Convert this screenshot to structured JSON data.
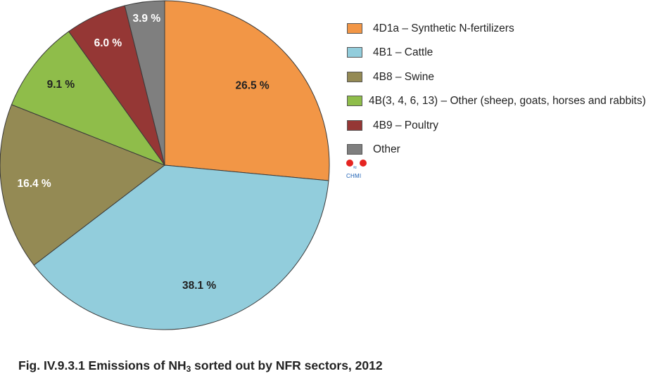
{
  "chart_data": {
    "type": "pie",
    "slices": [
      {
        "label": "4D1a – Synthetic N-fertilizers",
        "value": 26.5,
        "value_label": "26.5 %",
        "color": "#F29646"
      },
      {
        "label": "4B1 – Cattle",
        "value": 38.1,
        "value_label": "38.1 %",
        "color": "#92CDDC"
      },
      {
        "label": "4B8 – Swine",
        "value": 16.4,
        "value_label": "16.4 %",
        "color": "#948A54"
      },
      {
        "label": "4B(3, 4, 6, 13) – Other (sheep, goats, horses and rabbits)",
        "value": 9.1,
        "value_label": "9.1 %",
        "color": "#8FBD4A"
      },
      {
        "label": "4B9 – Poultry",
        "value": 6.0,
        "value_label": "6.0 %",
        "color": "#953735"
      },
      {
        "label": "Other",
        "value": 3.9,
        "value_label": "3.9 %",
        "color": "#7F7F7F"
      }
    ],
    "legend_position": "right"
  },
  "logo": {
    "text": "CHMI"
  },
  "caption": {
    "prefix": "Fig. IV.9.3.1  Emissions of NH",
    "subscript": "3",
    "suffix": " sorted out by NFR sectors, 2012"
  }
}
